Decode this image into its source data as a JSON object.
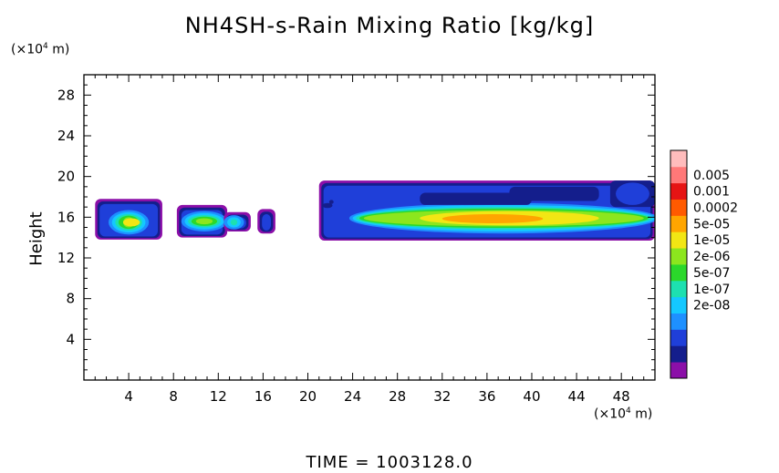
{
  "chart_data": {
    "type": "heatmap",
    "title": "NH4SH-s-Rain Mixing Ratio [kg/kg]",
    "ylabel": "Height",
    "xlabel": "",
    "x_unit": "(×10⁴ m)",
    "y_unit": "(×10⁴ m)",
    "xlim": [
      0,
      51
    ],
    "ylim": [
      0,
      30
    ],
    "x_ticks": [
      4,
      8,
      12,
      16,
      20,
      24,
      28,
      32,
      36,
      40,
      44,
      48
    ],
    "y_ticks": [
      4,
      8,
      12,
      16,
      20,
      24,
      28
    ],
    "colorbar": {
      "labels": [
        "0.005",
        "0.001",
        "0.0002",
        "5e-05",
        "1e-05",
        "2e-06",
        "5e-07",
        "1e-07",
        "2e-08"
      ],
      "colors": [
        "#8b0fa8",
        "#141e8c",
        "#1f3fd9",
        "#1e90ff",
        "#14c8ff",
        "#1de0b0",
        "#2bd82b",
        "#8ce61e",
        "#f2e614",
        "#ffa500",
        "#ff5a00",
        "#e61414",
        "#ff7878",
        "#ffbcbc"
      ]
    },
    "clouds": [
      {
        "x": [
          1.0,
          7.0
        ],
        "y_range": [
          13.8,
          17.8
        ],
        "core": [
          2.5,
          5.5,
          14.5,
          16.5
        ]
      },
      {
        "x": [
          8.3,
          12.8
        ],
        "y_range": [
          14.0,
          17.2
        ],
        "core": [
          9.0,
          12.5,
          14.8,
          16.4
        ]
      },
      {
        "x": [
          12.5,
          14.9
        ],
        "y_range": [
          14.6,
          16.5
        ],
        "core": [
          12.8,
          14.0,
          15.0,
          16.0
        ]
      },
      {
        "x": [
          15.5,
          17.1
        ],
        "y_range": [
          14.4,
          16.8
        ],
        "core": null
      },
      {
        "x": [
          21.0,
          51.0
        ],
        "y_range": [
          13.7,
          19.6
        ],
        "core": [
          24.0,
          51.0,
          14.6,
          17.2
        ]
      }
    ]
  },
  "footer": {
    "time_text": "TIME =  1003128.0"
  }
}
